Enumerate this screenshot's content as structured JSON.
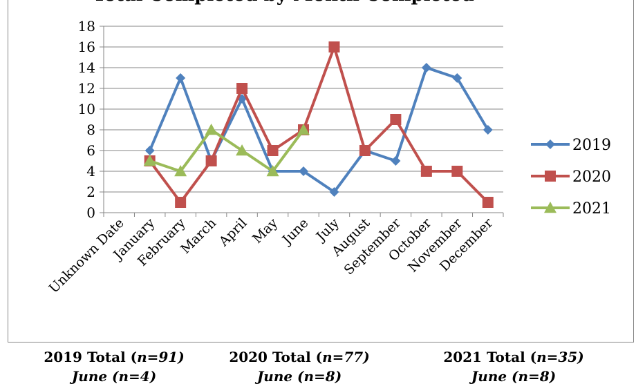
{
  "chart_data": {
    "type": "line",
    "title": "Total Completed by Month Completed",
    "categories": [
      "Unknown Date",
      "January",
      "February",
      "March",
      "April",
      "May",
      "June",
      "July",
      "August",
      "September",
      "October",
      "November",
      "December"
    ],
    "ylim": [
      0,
      18
    ],
    "yticks": [
      0,
      2,
      4,
      6,
      8,
      10,
      12,
      14,
      16,
      18
    ],
    "grid": true,
    "legend_position": "right",
    "series": [
      {
        "name": "2019",
        "color": "#4f81bd",
        "marker": "diamond",
        "values": [
          null,
          6,
          13,
          5,
          11,
          4,
          4,
          2,
          6,
          5,
          14,
          13,
          8
        ]
      },
      {
        "name": "2020",
        "color": "#c0504d",
        "marker": "square",
        "values": [
          null,
          5,
          1,
          5,
          12,
          6,
          8,
          16,
          6,
          9,
          4,
          4,
          1
        ]
      },
      {
        "name": "2021",
        "color": "#9bbb59",
        "marker": "triangle",
        "values": [
          null,
          5,
          4,
          8,
          6,
          4,
          8,
          null,
          null,
          null,
          null,
          null,
          null
        ]
      }
    ]
  },
  "footer": [
    {
      "total_label": "2019 Total (",
      "total_n": "n=91)",
      "month_line": "June (n=4)"
    },
    {
      "total_label": "2020 Total (",
      "total_n": "n=77)",
      "month_line": "June (n=8)"
    },
    {
      "total_label": "2021 Total (",
      "total_n": "n=35)",
      "month_line": "June (n=8)"
    }
  ]
}
